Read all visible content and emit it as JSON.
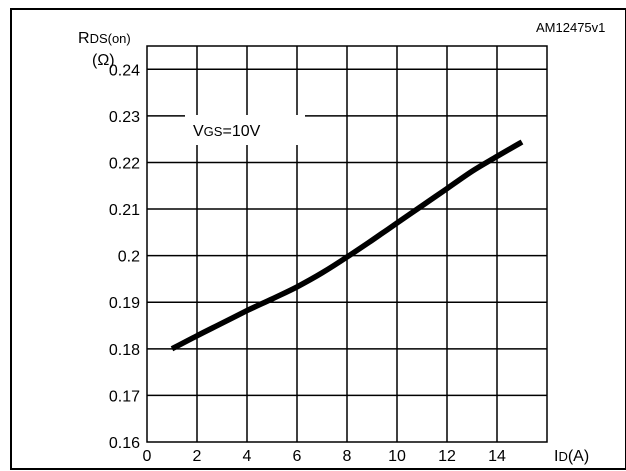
{
  "chart_data": {
    "type": "line",
    "figure_id": "AM12475v1",
    "ylabel_main": "R",
    "ylabel_sub": "DS(on)",
    "yunit": "(Ω)",
    "xlabel_main": "I",
    "xlabel_sub": "D",
    "xunit": "(A)",
    "annotation_main": "V",
    "annotation_sub": "GS",
    "annotation_value": "=10V",
    "xlim": [
      0,
      16
    ],
    "ylim": [
      0.16,
      0.245
    ],
    "xticks": [
      "0",
      "2",
      "4",
      "6",
      "8",
      "10",
      "12",
      "14"
    ],
    "yticks": [
      "0.16",
      "0.17",
      "0.18",
      "0.19",
      "0.2",
      "0.21",
      "0.22",
      "0.23",
      "0.24"
    ],
    "grid": true,
    "series": [
      {
        "x": [
          1,
          2,
          3,
          4,
          5,
          6,
          7,
          8,
          9,
          10,
          11,
          12,
          13,
          14,
          15
        ],
        "y": [
          0.18,
          0.1828,
          0.1855,
          0.1882,
          0.1907,
          0.1933,
          0.1963,
          0.1997,
          0.2033,
          0.207,
          0.2107,
          0.2144,
          0.2181,
          0.2213,
          0.2244
        ]
      }
    ]
  }
}
